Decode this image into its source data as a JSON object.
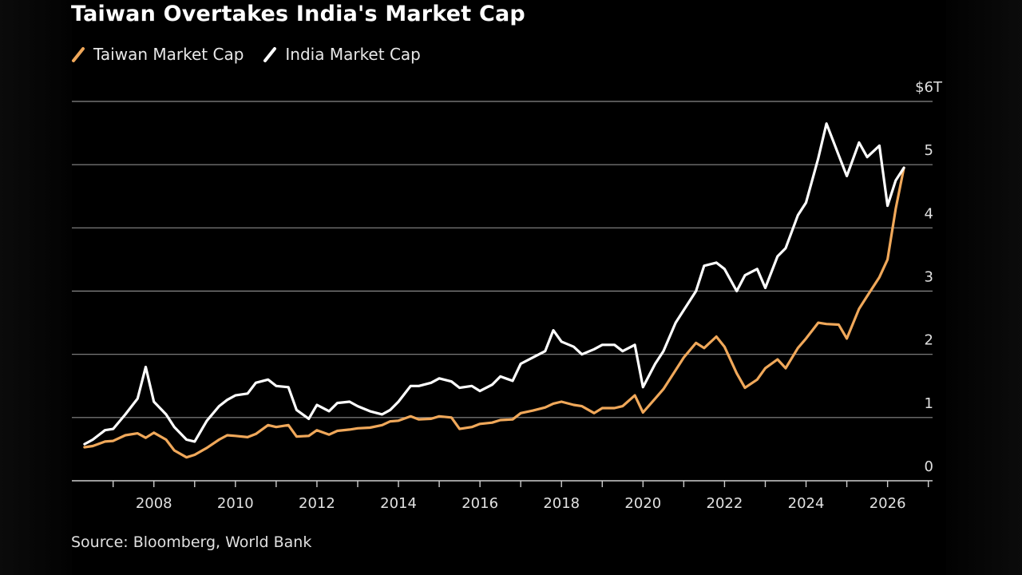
{
  "chart_data": {
    "type": "line",
    "title": "Taiwan Overtakes India's Market Cap",
    "xlabel": "",
    "ylabel": "",
    "y_unit_label": "$6T",
    "xlim": [
      2006.2,
      2026.6
    ],
    "ylim": [
      0,
      6
    ],
    "grid": true,
    "legend_position": "top-left",
    "x_ticks": [
      "2008",
      "2010",
      "2012",
      "2014",
      "2016",
      "2018",
      "2020",
      "2022",
      "2024",
      "2026"
    ],
    "y_ticks": [
      "0",
      "1",
      "2",
      "3",
      "4",
      "5"
    ],
    "source": "Source: Bloomberg, World Bank",
    "series": [
      {
        "name": "Taiwan Market Cap",
        "color": "#f0a85a",
        "points": [
          [
            2006.3,
            0.53
          ],
          [
            2006.5,
            0.55
          ],
          [
            2006.8,
            0.62
          ],
          [
            2007.0,
            0.63
          ],
          [
            2007.3,
            0.72
          ],
          [
            2007.6,
            0.75
          ],
          [
            2007.8,
            0.68
          ],
          [
            2008.0,
            0.76
          ],
          [
            2008.3,
            0.65
          ],
          [
            2008.5,
            0.48
          ],
          [
            2008.8,
            0.37
          ],
          [
            2009.0,
            0.41
          ],
          [
            2009.3,
            0.52
          ],
          [
            2009.6,
            0.65
          ],
          [
            2009.8,
            0.72
          ],
          [
            2010.0,
            0.71
          ],
          [
            2010.3,
            0.69
          ],
          [
            2010.5,
            0.74
          ],
          [
            2010.8,
            0.88
          ],
          [
            2011.0,
            0.85
          ],
          [
            2011.3,
            0.88
          ],
          [
            2011.5,
            0.7
          ],
          [
            2011.8,
            0.71
          ],
          [
            2012.0,
            0.8
          ],
          [
            2012.3,
            0.73
          ],
          [
            2012.5,
            0.79
          ],
          [
            2012.8,
            0.81
          ],
          [
            2013.0,
            0.83
          ],
          [
            2013.3,
            0.84
          ],
          [
            2013.6,
            0.88
          ],
          [
            2013.8,
            0.94
          ],
          [
            2014.0,
            0.95
          ],
          [
            2014.3,
            1.02
          ],
          [
            2014.5,
            0.97
          ],
          [
            2014.8,
            0.98
          ],
          [
            2015.0,
            1.02
          ],
          [
            2015.3,
            1.0
          ],
          [
            2015.5,
            0.82
          ],
          [
            2015.8,
            0.85
          ],
          [
            2016.0,
            0.9
          ],
          [
            2016.3,
            0.92
          ],
          [
            2016.5,
            0.96
          ],
          [
            2016.8,
            0.97
          ],
          [
            2017.0,
            1.07
          ],
          [
            2017.3,
            1.11
          ],
          [
            2017.6,
            1.16
          ],
          [
            2017.8,
            1.22
          ],
          [
            2018.0,
            1.25
          ],
          [
            2018.3,
            1.2
          ],
          [
            2018.5,
            1.18
          ],
          [
            2018.8,
            1.07
          ],
          [
            2019.0,
            1.15
          ],
          [
            2019.3,
            1.15
          ],
          [
            2019.5,
            1.18
          ],
          [
            2019.8,
            1.35
          ],
          [
            2020.0,
            1.08
          ],
          [
            2020.3,
            1.3
          ],
          [
            2020.5,
            1.45
          ],
          [
            2020.8,
            1.75
          ],
          [
            2021.0,
            1.95
          ],
          [
            2021.3,
            2.18
          ],
          [
            2021.5,
            2.1
          ],
          [
            2021.8,
            2.28
          ],
          [
            2022.0,
            2.12
          ],
          [
            2022.3,
            1.7
          ],
          [
            2022.5,
            1.47
          ],
          [
            2022.8,
            1.6
          ],
          [
            2023.0,
            1.78
          ],
          [
            2023.3,
            1.92
          ],
          [
            2023.5,
            1.78
          ],
          [
            2023.8,
            2.1
          ],
          [
            2024.0,
            2.25
          ],
          [
            2024.3,
            2.5
          ],
          [
            2024.5,
            2.48
          ],
          [
            2024.8,
            2.47
          ],
          [
            2025.0,
            2.25
          ],
          [
            2025.3,
            2.72
          ],
          [
            2025.5,
            2.92
          ],
          [
            2025.8,
            3.22
          ],
          [
            2026.0,
            3.5
          ],
          [
            2026.2,
            4.3
          ],
          [
            2026.4,
            4.95
          ]
        ]
      },
      {
        "name": "India Market Cap",
        "color": "#ffffff",
        "points": [
          [
            2006.3,
            0.58
          ],
          [
            2006.5,
            0.65
          ],
          [
            2006.8,
            0.8
          ],
          [
            2007.0,
            0.82
          ],
          [
            2007.3,
            1.05
          ],
          [
            2007.6,
            1.3
          ],
          [
            2007.8,
            1.8
          ],
          [
            2008.0,
            1.25
          ],
          [
            2008.3,
            1.05
          ],
          [
            2008.5,
            0.85
          ],
          [
            2008.8,
            0.65
          ],
          [
            2009.0,
            0.62
          ],
          [
            2009.3,
            0.95
          ],
          [
            2009.6,
            1.18
          ],
          [
            2009.8,
            1.28
          ],
          [
            2010.0,
            1.35
          ],
          [
            2010.3,
            1.38
          ],
          [
            2010.5,
            1.55
          ],
          [
            2010.8,
            1.6
          ],
          [
            2011.0,
            1.5
          ],
          [
            2011.3,
            1.48
          ],
          [
            2011.5,
            1.12
          ],
          [
            2011.8,
            0.98
          ],
          [
            2012.0,
            1.2
          ],
          [
            2012.3,
            1.1
          ],
          [
            2012.5,
            1.23
          ],
          [
            2012.8,
            1.25
          ],
          [
            2013.0,
            1.18
          ],
          [
            2013.3,
            1.1
          ],
          [
            2013.6,
            1.05
          ],
          [
            2013.8,
            1.12
          ],
          [
            2014.0,
            1.25
          ],
          [
            2014.3,
            1.5
          ],
          [
            2014.5,
            1.5
          ],
          [
            2014.8,
            1.55
          ],
          [
            2015.0,
            1.62
          ],
          [
            2015.3,
            1.57
          ],
          [
            2015.5,
            1.47
          ],
          [
            2015.8,
            1.5
          ],
          [
            2016.0,
            1.42
          ],
          [
            2016.3,
            1.52
          ],
          [
            2016.5,
            1.65
          ],
          [
            2016.8,
            1.58
          ],
          [
            2017.0,
            1.85
          ],
          [
            2017.3,
            1.95
          ],
          [
            2017.6,
            2.05
          ],
          [
            2017.8,
            2.38
          ],
          [
            2018.0,
            2.2
          ],
          [
            2018.3,
            2.12
          ],
          [
            2018.5,
            2.0
          ],
          [
            2018.8,
            2.08
          ],
          [
            2019.0,
            2.15
          ],
          [
            2019.3,
            2.15
          ],
          [
            2019.5,
            2.05
          ],
          [
            2019.8,
            2.15
          ],
          [
            2020.0,
            1.48
          ],
          [
            2020.3,
            1.85
          ],
          [
            2020.5,
            2.05
          ],
          [
            2020.8,
            2.5
          ],
          [
            2021.0,
            2.7
          ],
          [
            2021.3,
            3.0
          ],
          [
            2021.5,
            3.4
          ],
          [
            2021.8,
            3.45
          ],
          [
            2022.0,
            3.35
          ],
          [
            2022.3,
            3.0
          ],
          [
            2022.5,
            3.25
          ],
          [
            2022.8,
            3.35
          ],
          [
            2023.0,
            3.05
          ],
          [
            2023.3,
            3.55
          ],
          [
            2023.5,
            3.68
          ],
          [
            2023.8,
            4.2
          ],
          [
            2024.0,
            4.4
          ],
          [
            2024.3,
            5.1
          ],
          [
            2024.5,
            5.65
          ],
          [
            2024.8,
            5.15
          ],
          [
            2025.0,
            4.82
          ],
          [
            2025.3,
            5.35
          ],
          [
            2025.5,
            5.12
          ],
          [
            2025.8,
            5.3
          ],
          [
            2026.0,
            4.35
          ],
          [
            2026.2,
            4.75
          ],
          [
            2026.4,
            4.95
          ]
        ]
      }
    ]
  }
}
